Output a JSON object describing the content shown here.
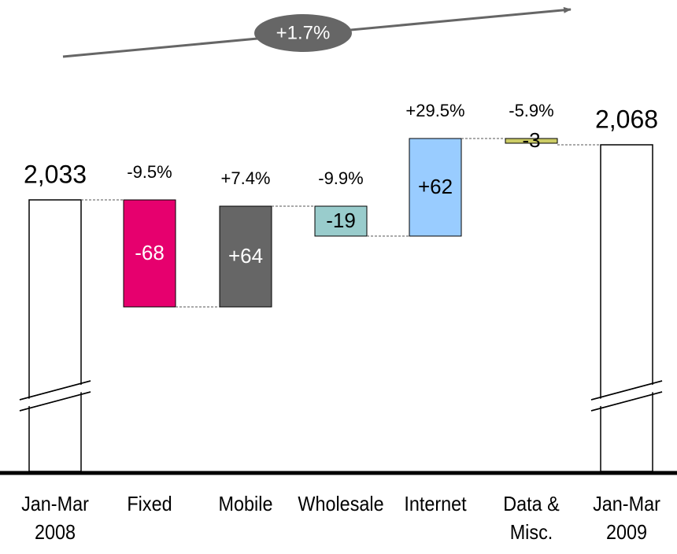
{
  "chart_data": {
    "type": "waterfall",
    "annotation": "+1.7%",
    "categories": [
      "Jan-Mar\n2008",
      "Fixed",
      "Mobile",
      "Wholesale",
      "Internet",
      "Data &\nMisc.",
      "Jan-Mar\n2009"
    ],
    "values": [
      2033,
      -68,
      64,
      -19,
      62,
      -3,
      2068
    ],
    "value_labels": [
      "2,033",
      "-68",
      "+64",
      "-19",
      "+62",
      "-3",
      "2,068"
    ],
    "growth_labels": [
      null,
      "-9.5%",
      "+7.4%",
      "-9.9%",
      "+29.5%",
      "-5.9%",
      null
    ],
    "colors": [
      "#ffffff",
      "#e6006e",
      "#666666",
      "#99cccc",
      "#99ccff",
      "#cccc66",
      "#ffffff"
    ],
    "value_label_colors": [
      "#000000",
      "#ffffff",
      "#ffffff",
      "#000000",
      "#000000",
      "#000000",
      "#000000"
    ],
    "totals": [
      true,
      false,
      false,
      false,
      false,
      false,
      true
    ]
  }
}
